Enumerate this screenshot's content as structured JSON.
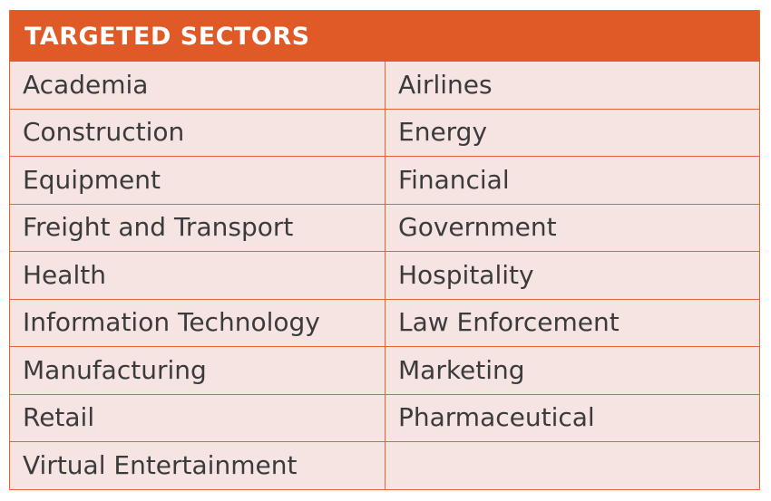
{
  "title": "TARGETED SECTORS",
  "colors": {
    "header_bg": "#e05a27",
    "header_text": "#ffffff",
    "cell_bg": "#f5e4e2",
    "border": "#e3652f",
    "cell_text": "#3b3b3b"
  },
  "rows": [
    {
      "left": "Academia",
      "right": "Airlines"
    },
    {
      "left": "Construction",
      "right": "Energy"
    },
    {
      "left": "Equipment",
      "right": "Financial"
    },
    {
      "left": "Freight and Transport",
      "right": "Government"
    },
    {
      "left": "Health",
      "right": "Hospitality"
    },
    {
      "left": "Information Technology",
      "right": "Law Enforcement"
    },
    {
      "left": "Manufacturing",
      "right": "Marketing"
    },
    {
      "left": "Retail",
      "right": "Pharmaceutical"
    },
    {
      "left": "Virtual Entertainment",
      "right": ""
    }
  ]
}
